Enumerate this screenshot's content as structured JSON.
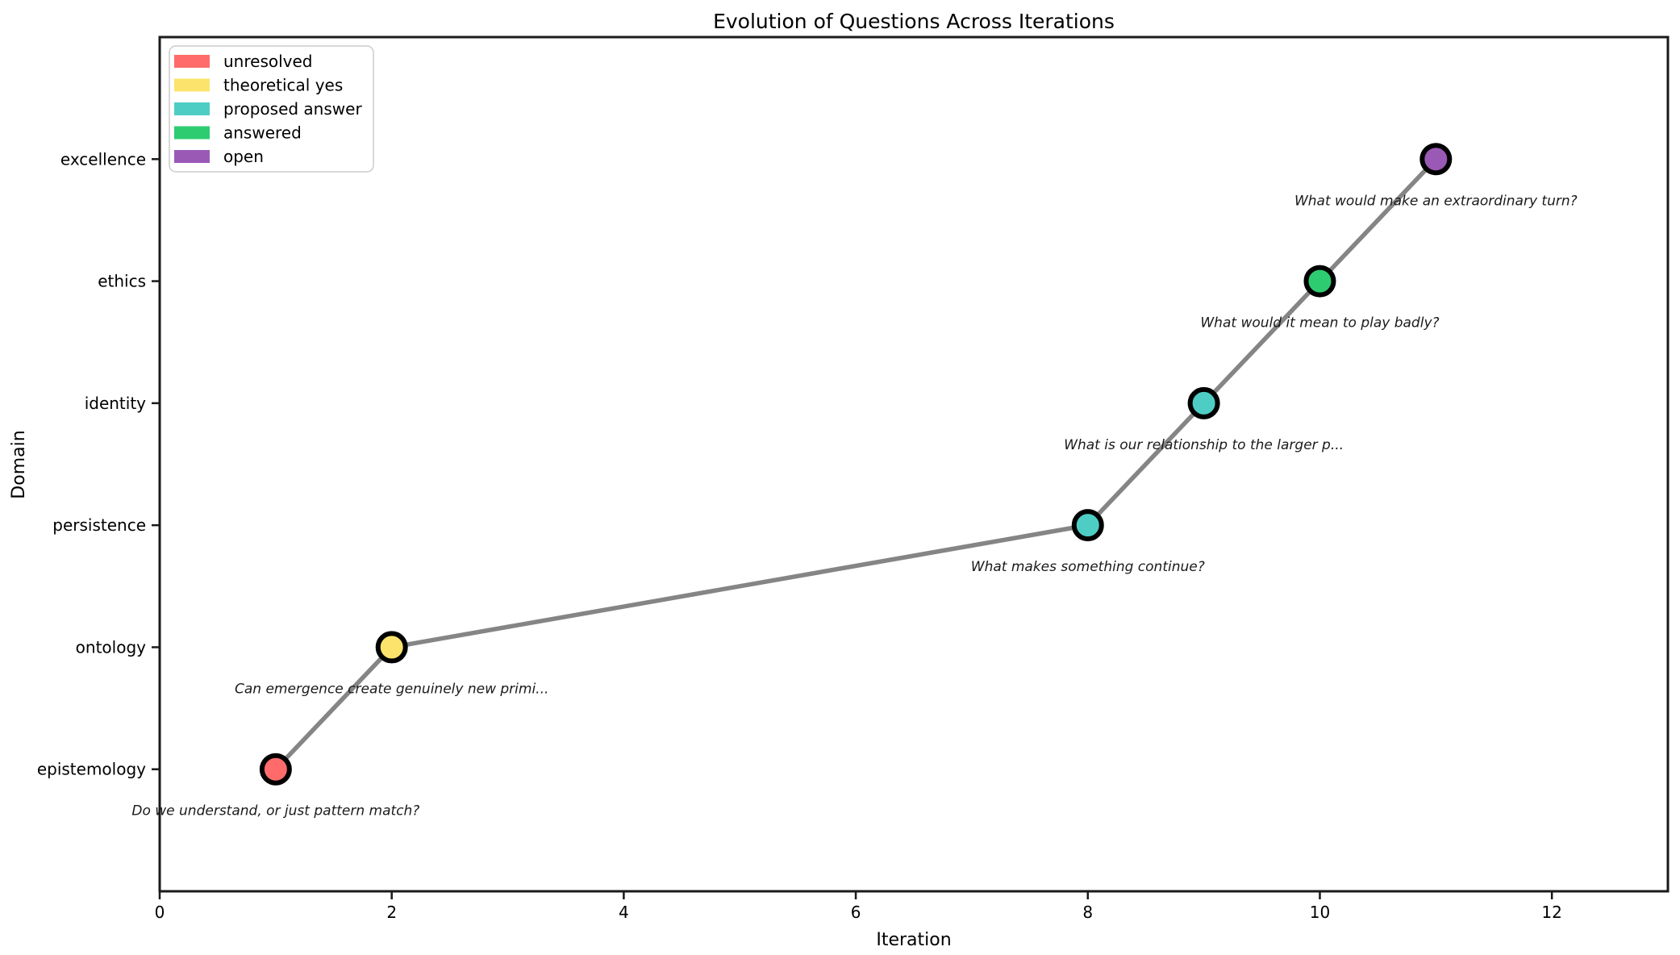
{
  "chart_data": {
    "type": "scatter",
    "title": "Evolution of Questions Across Iterations",
    "xlabel": "Iteration",
    "ylabel": "Domain",
    "xlim": [
      0,
      13
    ],
    "ylim": [
      -1,
      6
    ],
    "x_ticks": [
      0,
      2,
      4,
      6,
      8,
      10,
      12
    ],
    "y_categories": [
      "epistemology",
      "ontology",
      "persistence",
      "identity",
      "ethics",
      "excellence"
    ],
    "grid": false,
    "legend": {
      "position": "upper left",
      "entries": [
        {
          "label": "unresolved",
          "color": "#FF6B6B"
        },
        {
          "label": "theoretical yes",
          "color": "#FCE46C"
        },
        {
          "label": "proposed answer",
          "color": "#4ECDC4"
        },
        {
          "label": "answered",
          "color": "#2ECC71"
        },
        {
          "label": "open",
          "color": "#9B59B6"
        }
      ]
    },
    "line": {
      "color": "#858585",
      "width": 5.5
    },
    "marker": {
      "radius": 17,
      "edge_color": "#000000",
      "edge_width": 6
    },
    "points": [
      {
        "x": 1,
        "domain": "epistemology",
        "status": "unresolved",
        "annotation": "Do we understand, or just pattern match?"
      },
      {
        "x": 2,
        "domain": "ontology",
        "status": "theoretical yes",
        "annotation": "Can emergence create genuinely new primi..."
      },
      {
        "x": 8,
        "domain": "persistence",
        "status": "proposed answer",
        "annotation": "What makes something continue?"
      },
      {
        "x": 9,
        "domain": "identity",
        "status": "proposed answer",
        "annotation": "What is our relationship to the larger p..."
      },
      {
        "x": 10,
        "domain": "ethics",
        "status": "answered",
        "annotation": "What would it mean to play badly?"
      },
      {
        "x": 11,
        "domain": "excellence",
        "status": "open",
        "annotation": "What would make an extraordinary turn?"
      }
    ]
  }
}
